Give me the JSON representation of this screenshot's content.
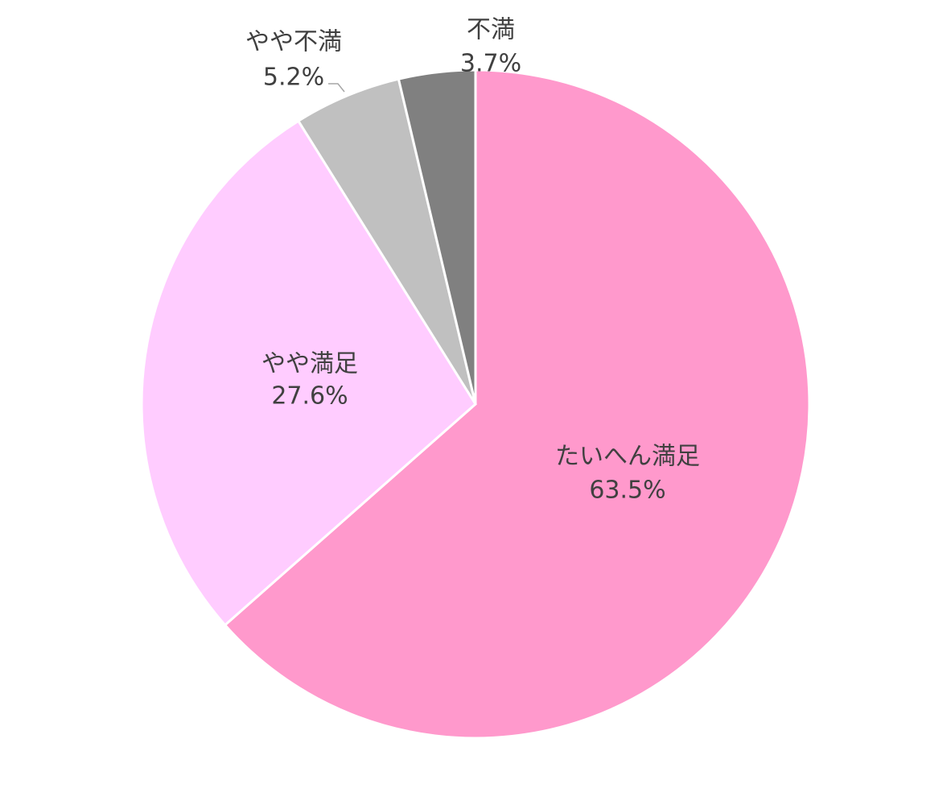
{
  "chart_data": {
    "type": "pie",
    "categories": [
      "たいへん満足",
      "やや満足",
      "やや不満",
      "不満"
    ],
    "values": [
      63.5,
      27.6,
      5.2,
      3.7
    ],
    "value_labels": [
      "63.5%",
      "27.6%",
      "5.2%",
      "3.7%"
    ],
    "colors": [
      "#ff99cc",
      "#ffccff",
      "#c0c0c0",
      "#808080"
    ]
  }
}
